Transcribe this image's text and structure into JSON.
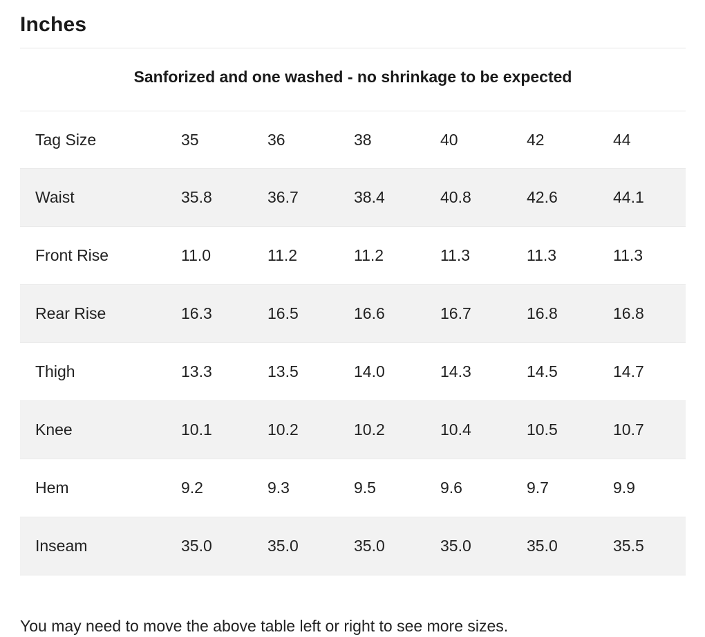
{
  "heading": "Inches",
  "caption": "Sanforized and one washed - no shrinkage to be expected",
  "table": {
    "rows": [
      {
        "label": "Tag Size",
        "values": [
          "35",
          "36",
          "38",
          "40",
          "42",
          "44"
        ]
      },
      {
        "label": "Waist",
        "values": [
          "35.8",
          "36.7",
          "38.4",
          "40.8",
          "42.6",
          "44.1"
        ]
      },
      {
        "label": "Front Rise",
        "values": [
          "11.0",
          "11.2",
          "11.2",
          "11.3",
          "11.3",
          "11.3"
        ]
      },
      {
        "label": "Rear Rise",
        "values": [
          "16.3",
          "16.5",
          "16.6",
          "16.7",
          "16.8",
          "16.8"
        ]
      },
      {
        "label": "Thigh",
        "values": [
          "13.3",
          "13.5",
          "14.0",
          "14.3",
          "14.5",
          "14.7"
        ]
      },
      {
        "label": "Knee",
        "values": [
          "10.1",
          "10.2",
          "10.2",
          "10.4",
          "10.5",
          "10.7"
        ]
      },
      {
        "label": "Hem",
        "values": [
          "9.2",
          "9.3",
          "9.5",
          "9.6",
          "9.7",
          "9.9"
        ]
      },
      {
        "label": "Inseam",
        "values": [
          "35.0",
          "35.0",
          "35.0",
          "35.0",
          "35.0",
          "35.5"
        ]
      }
    ]
  },
  "footer_note": "You may need to move the above table left or right to see more sizes.",
  "colors": {
    "stripe": "#f2f2f2",
    "rule": "#e6e6e6",
    "text": "#222222"
  }
}
